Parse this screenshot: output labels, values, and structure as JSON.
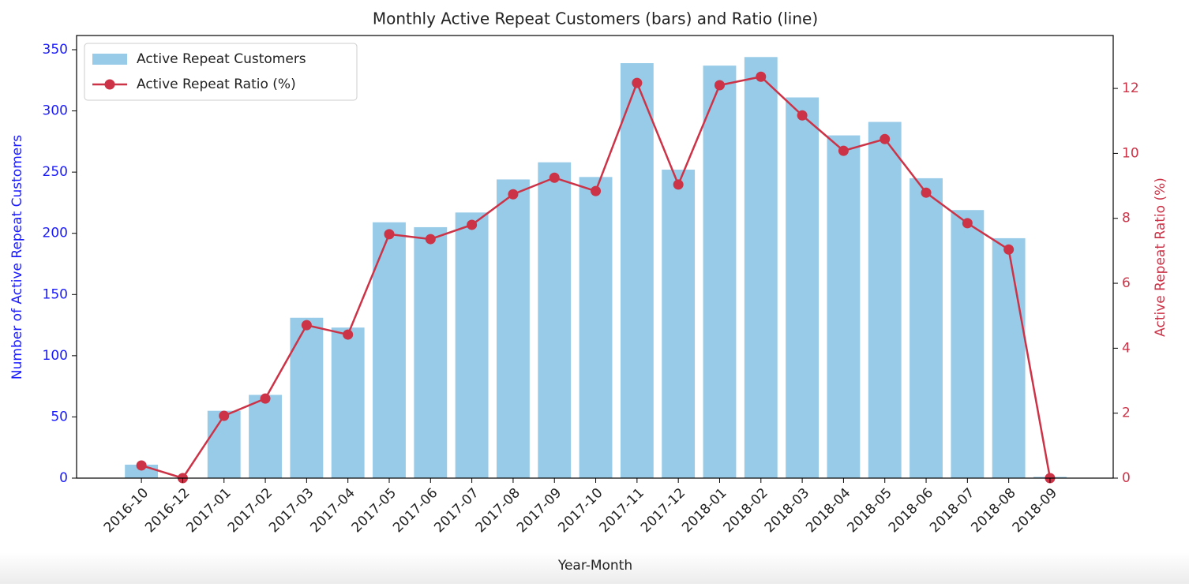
{
  "chart_data": {
    "type": "bar-line",
    "title": "Monthly Active Repeat Customers (bars) and Ratio (line)",
    "x_label": "Year-Month",
    "y_label": "Number of Active Repeat Customers",
    "y2_label": "Active Repeat Ratio (%)",
    "categories": [
      "2016-10",
      "2016-12",
      "2017-01",
      "2017-02",
      "2017-03",
      "2017-04",
      "2017-05",
      "2017-06",
      "2017-07",
      "2017-08",
      "2017-09",
      "2017-10",
      "2017-11",
      "2017-12",
      "2018-01",
      "2018-02",
      "2018-03",
      "2018-04",
      "2018-05",
      "2018-06",
      "2018-07",
      "2018-08",
      "2018-09"
    ],
    "series": [
      {
        "name": "Active Repeat Customers",
        "type": "bar",
        "color": "#97cbe8",
        "values": [
          11,
          0,
          55,
          68,
          131,
          123,
          209,
          205,
          217,
          244,
          258,
          246,
          339,
          252,
          337,
          344,
          311,
          280,
          291,
          245,
          219,
          196,
          1
        ]
      },
      {
        "name": "Active Repeat Ratio (%)",
        "type": "line",
        "axis": "y2",
        "color": "#cc3347",
        "values": [
          0.39,
          0,
          1.92,
          2.45,
          4.71,
          4.42,
          7.51,
          7.36,
          7.8,
          8.74,
          9.25,
          8.84,
          12.17,
          9.04,
          12.1,
          12.36,
          11.17,
          10.08,
          10.44,
          8.79,
          7.85,
          7.04,
          0
        ]
      }
    ],
    "ylim": [
      0,
      361.6
    ],
    "yticks": [
      0,
      50,
      100,
      150,
      200,
      250,
      300,
      350
    ],
    "y_color": "#1a1aff",
    "y2lim": [
      0,
      13.63
    ],
    "y2ticks": [
      0,
      2,
      4,
      6,
      8,
      10,
      12
    ],
    "y2_color": "#cc3347",
    "legend": "upper left"
  }
}
